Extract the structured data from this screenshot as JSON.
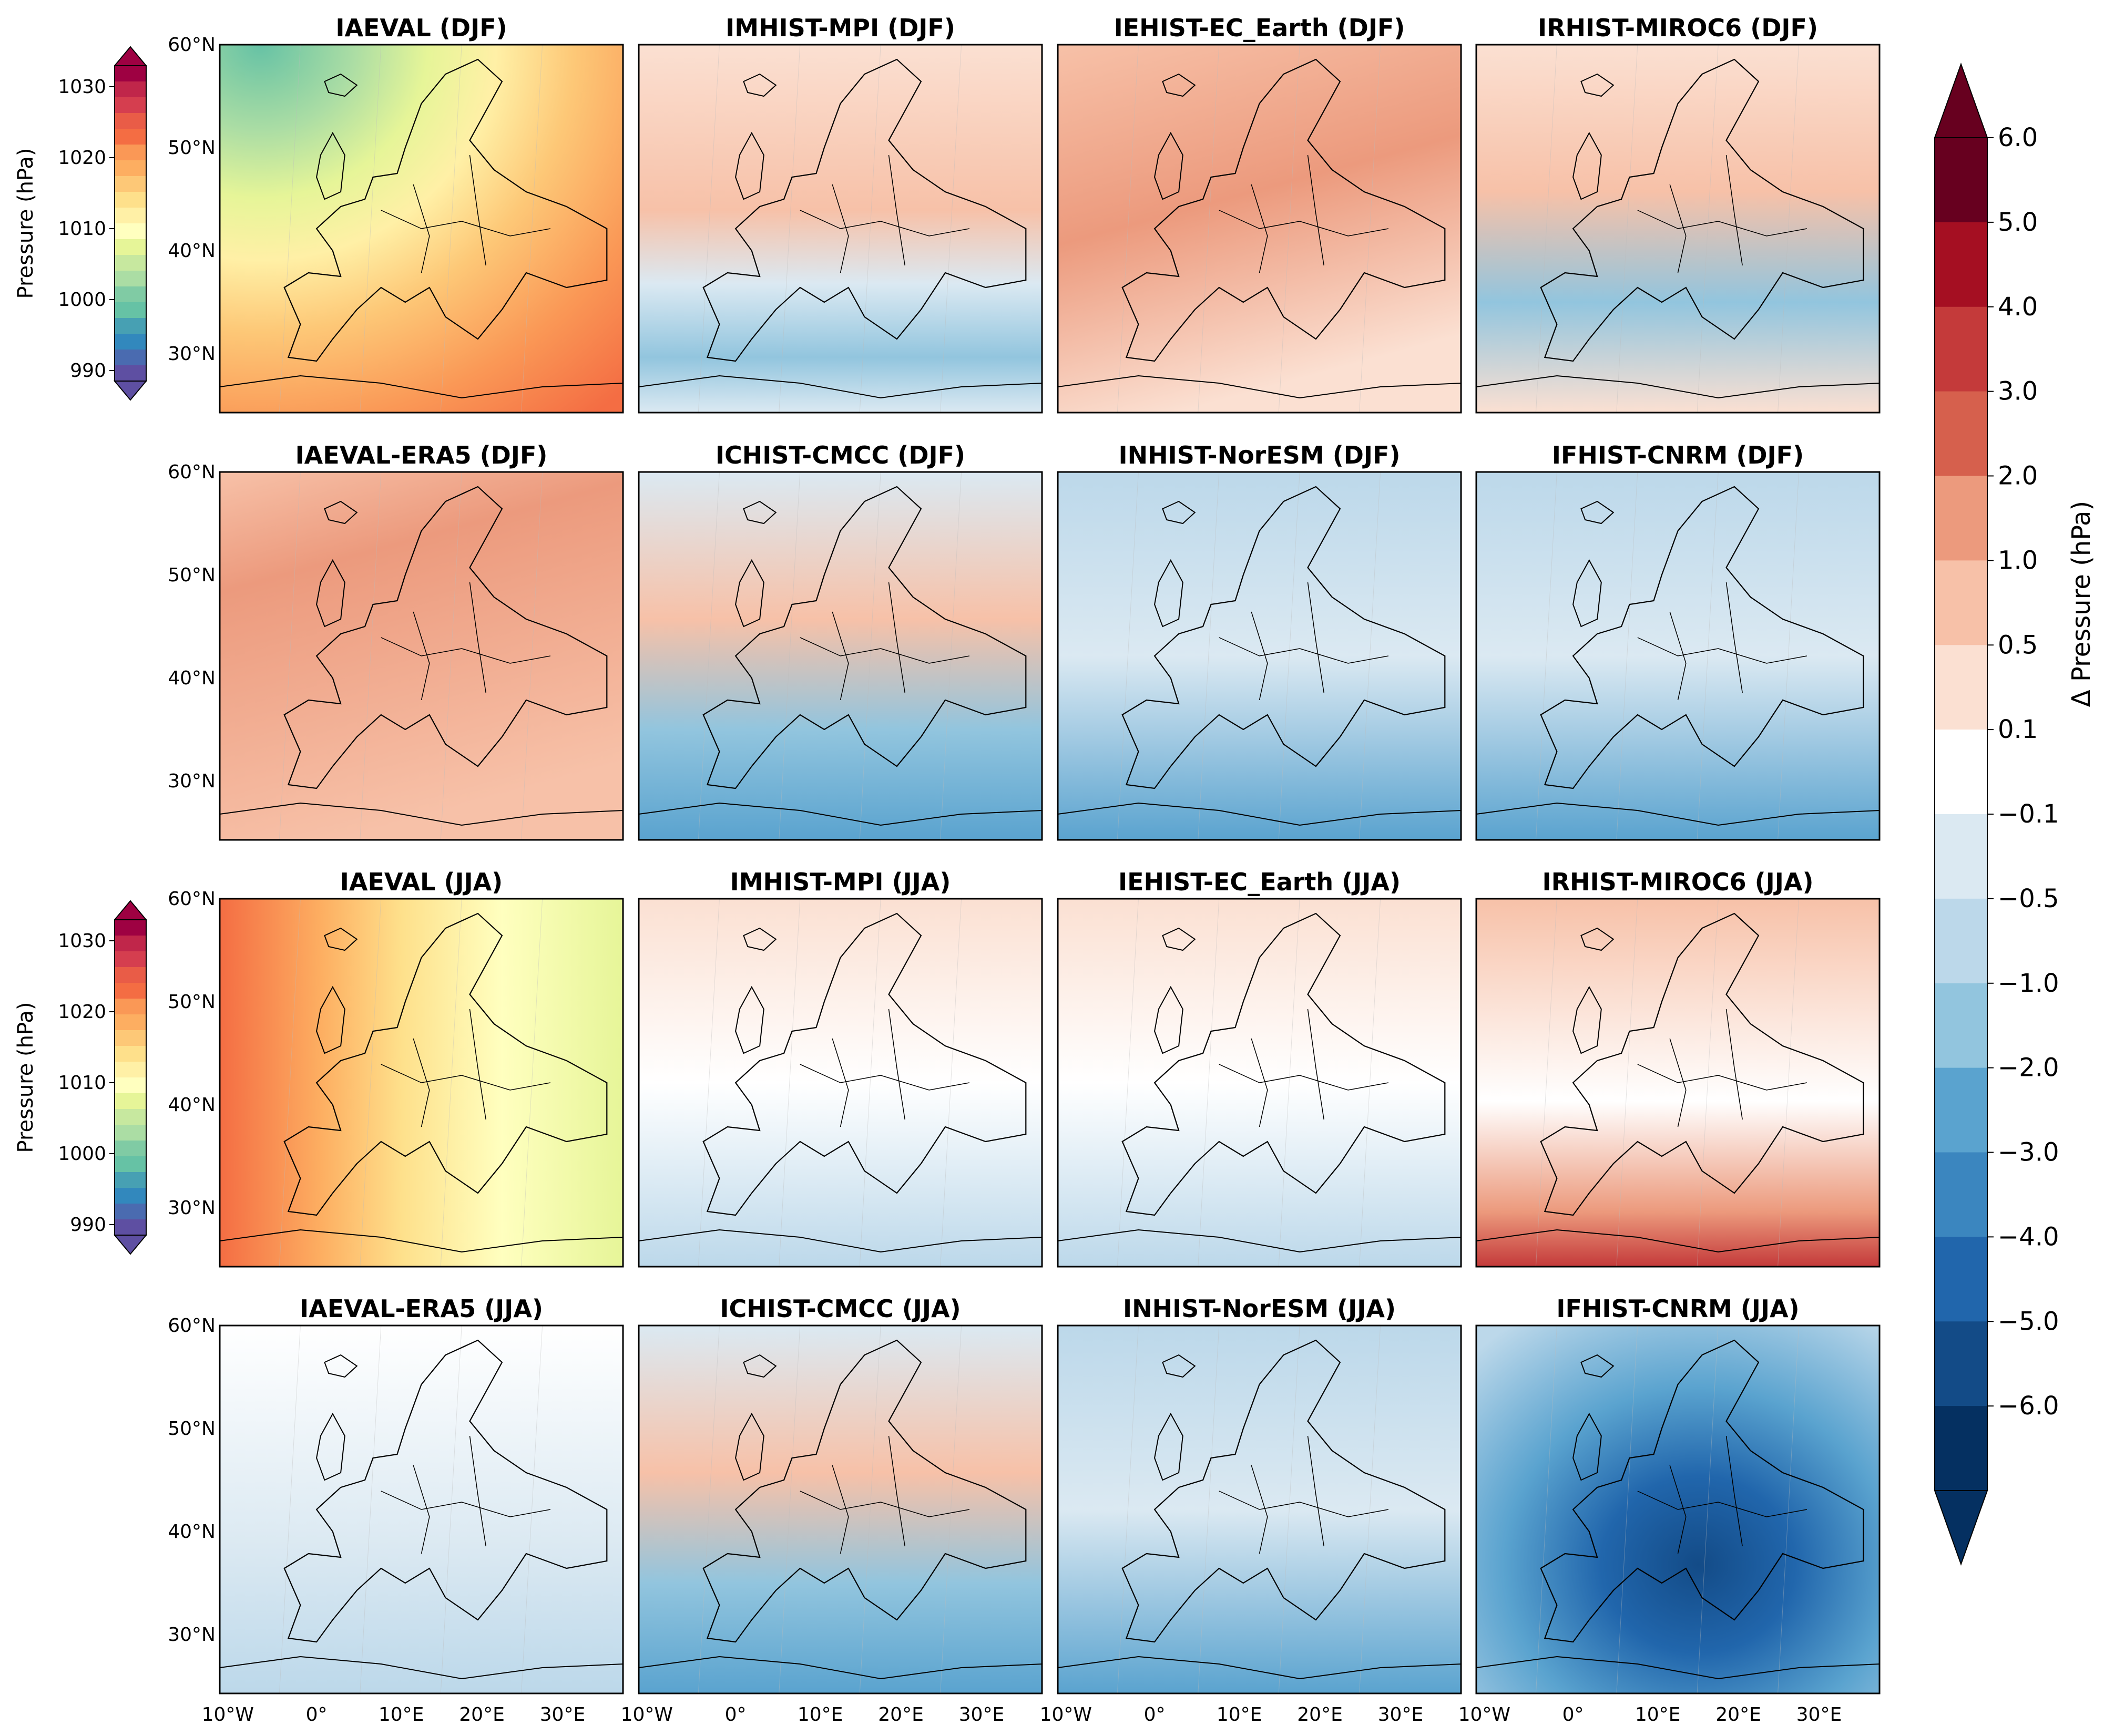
{
  "figure": {
    "panels": [
      {
        "title": "IAEVAL (DJF)",
        "kind": "abs_djf"
      },
      {
        "title": "IMHIST-MPI (DJF)",
        "kind": "warm_south_blue"
      },
      {
        "title": "IEHIST-EC_Earth (DJF)",
        "kind": "warm"
      },
      {
        "title": "IRHIST-MIROC6 (DJF)",
        "kind": "warm_med_blue"
      },
      {
        "title": "IAEVAL-ERA5 (DJF)",
        "kind": "warm_strong"
      },
      {
        "title": "ICHIST-CMCC (DJF)",
        "kind": "mixed_blue_south"
      },
      {
        "title": "INHIST-NorESM (DJF)",
        "kind": "blue"
      },
      {
        "title": "IFHIST-CNRM (DJF)",
        "kind": "blue"
      },
      {
        "title": "IAEVAL (JJA)",
        "kind": "abs_jja"
      },
      {
        "title": "IMHIST-MPI (JJA)",
        "kind": "light_mixed"
      },
      {
        "title": "IEHIST-EC_Earth (JJA)",
        "kind": "light_mixed"
      },
      {
        "title": "IRHIST-MIROC6 (JJA)",
        "kind": "warm_north_red_south"
      },
      {
        "title": "IAEVAL-ERA5 (JJA)",
        "kind": "light_blue"
      },
      {
        "title": "ICHIST-CMCC (JJA)",
        "kind": "mixed_blue_south"
      },
      {
        "title": "INHIST-NorESM (JJA)",
        "kind": "blue"
      },
      {
        "title": "IFHIST-CNRM (JJA)",
        "kind": "deep_blue"
      }
    ],
    "lat_ticks": [
      "60°N",
      "50°N",
      "40°N",
      "30°N"
    ],
    "lon_ticks": [
      "10°W",
      "0°",
      "10°E",
      "20°E",
      "30°E"
    ],
    "abs_colorbar": {
      "label": "Pressure (hPa)",
      "ticks": [
        "1030",
        "1020",
        "1010",
        "1000",
        "990"
      ],
      "colors": [
        "#9e0142",
        "#c0264a",
        "#d53e4f",
        "#e95c47",
        "#f46d43",
        "#fa9856",
        "#fdae61",
        "#fdc877",
        "#fee08b",
        "#fff0a6",
        "#ffffbf",
        "#e6f598",
        "#c7e89f",
        "#abdda4",
        "#80cba4",
        "#66c2a5",
        "#47a0b3",
        "#3288bd",
        "#4a6bb0",
        "#5e4fa2"
      ]
    },
    "diff_colorbar": {
      "label": "Δ Pressure (hPa)",
      "ticks": [
        "6.0",
        "5.0",
        "4.0",
        "3.0",
        "2.0",
        "1.0",
        "0.5",
        "0.1",
        "−0.1",
        "−0.5",
        "−1.0",
        "−2.0",
        "−3.0",
        "−4.0",
        "−5.0",
        "−6.0"
      ],
      "colors": [
        "#67001f",
        "#a50f22",
        "#c43a3a",
        "#d6604d",
        "#ec9a7d",
        "#f7c1a8",
        "#fbe0d2",
        "#ffffff",
        "#dbe9f2",
        "#bcd8ea",
        "#92c5de",
        "#5aa3cf",
        "#3b86bf",
        "#2166ac",
        "#134b87",
        "#053061"
      ]
    }
  }
}
